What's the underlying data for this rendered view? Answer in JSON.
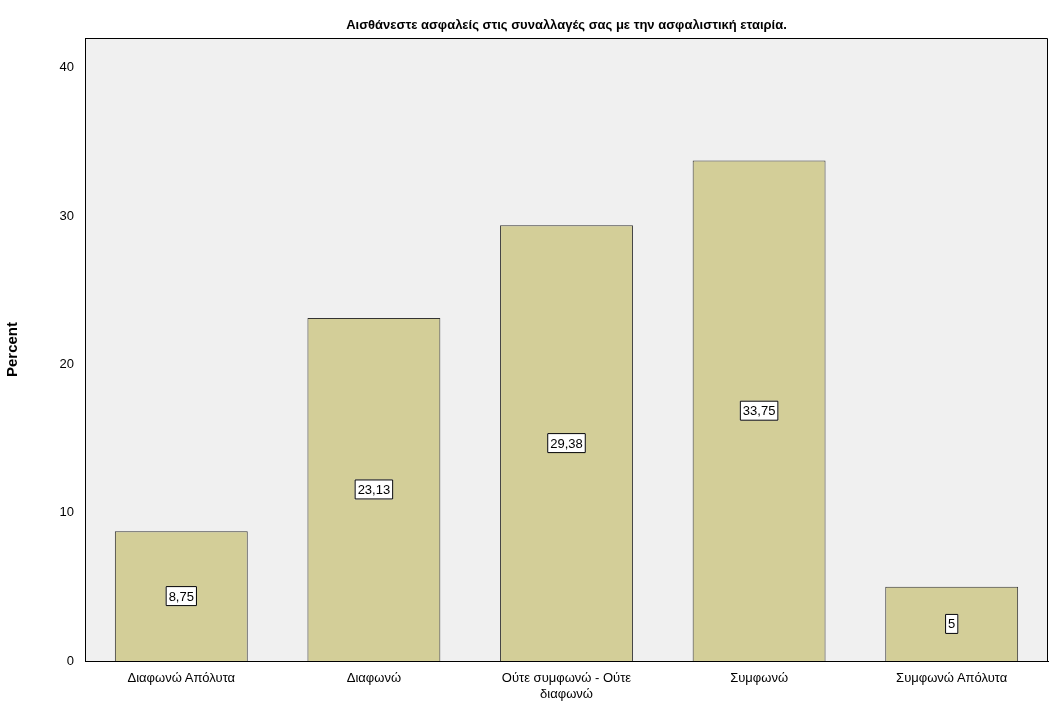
{
  "chart_data": {
    "type": "bar",
    "title": "Αισθάνεστε ασφαλείς στις συναλλαγές σας με την ασφαλιστική εταιρία.",
    "ylabel": "Percent",
    "categories": [
      "Διαφωνώ Απόλυτα",
      "Διαφωνώ",
      "Ούτε συμφωνώ - Ούτε διαφωνώ",
      "Συμφωνώ",
      "Συμφωνώ Απόλυτα"
    ],
    "values": [
      8.75,
      23.13,
      29.38,
      33.75,
      5
    ],
    "value_labels": [
      "8,75",
      "23,13",
      "29,38",
      "33,75",
      "5"
    ],
    "color": "#d3ce98",
    "ylim": [
      0,
      42
    ],
    "yticks": [
      0,
      10,
      20,
      30,
      40
    ],
    "grid": false,
    "legend": false
  }
}
